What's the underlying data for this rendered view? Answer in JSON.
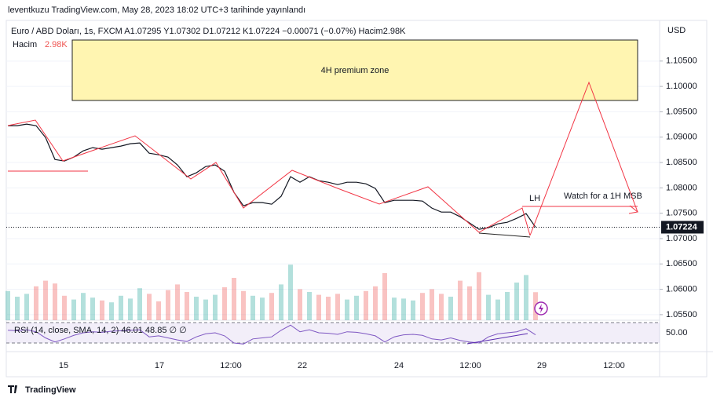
{
  "header": {
    "title": "leventkuzu TradingView.com, May 28, 2023 18:02 UTC+3 tarihinde yayınlandı"
  },
  "legend": {
    "symbol": "Euro / ABD Doları, 1s, FXCM  A1.07295  Y1.07302  D1.07212  K1.07224  −0.00071 (−0.07%)  Hacim2.98K",
    "volume_name": "Hacim",
    "volume_value": "2.98K"
  },
  "price_pane": {
    "currency": "USD",
    "ylim": [
      1.0539,
      1.1124
    ],
    "yticks": [
      {
        "value": 1.105,
        "label": "1.10500"
      },
      {
        "value": 1.1,
        "label": "1.10000"
      },
      {
        "value": 1.095,
        "label": "1.09500"
      },
      {
        "value": 1.09,
        "label": "1.09000"
      },
      {
        "value": 1.085,
        "label": "1.08500"
      },
      {
        "value": 1.08,
        "label": "1.08000"
      },
      {
        "value": 1.075,
        "label": "1.07500"
      },
      {
        "value": 1.07,
        "label": "1.07000"
      },
      {
        "value": 1.065,
        "label": "1.06500"
      },
      {
        "value": 1.06,
        "label": "1.06000"
      },
      {
        "value": 1.055,
        "label": "1.05500"
      }
    ],
    "close": [
      1.09226,
      1.09226,
      1.09257,
      1.09226,
      1.08994,
      1.0856,
      1.08529,
      1.08607,
      1.08731,
      1.08793,
      1.08762,
      1.08793,
      1.08824,
      1.0887,
      1.08885,
      1.08684,
      1.08653,
      1.08607,
      1.08452,
      1.0822,
      1.08297,
      1.08421,
      1.08452,
      1.08328,
      1.0791,
      1.07647,
      1.07709,
      1.07709,
      1.07678,
      1.07833,
      1.0822,
      1.08111,
      1.0822,
      1.08142,
      1.08111,
      1.08065,
      1.08111,
      1.08111,
      1.0808,
      1.07988,
      1.07709,
      1.07755,
      1.07755,
      1.07755,
      1.0774,
      1.07601,
      1.07523,
      1.07523,
      1.0743,
      1.07307,
      1.07183,
      1.07214,
      1.07291,
      1.07322,
      1.07399,
      1.07492,
      1.07224
    ],
    "current_price": {
      "value": 1.07224,
      "label": "1.07224"
    }
  },
  "volume": {
    "values": [
      3.1,
      2.5,
      2.8,
      3.6,
      4.2,
      3.9,
      2.6,
      2.2,
      2.9,
      2.4,
      2.1,
      1.9,
      2.6,
      2.3,
      3.4,
      2.8,
      2.0,
      3.2,
      3.8,
      3.0,
      2.5,
      2.2,
      2.7,
      3.5,
      4.5,
      3.1,
      2.6,
      2.4,
      2.9,
      3.8,
      5.9,
      3.3,
      3.0,
      2.7,
      2.5,
      2.8,
      2.2,
      2.6,
      3.1,
      3.6,
      5.0,
      2.4,
      2.3,
      2.1,
      2.9,
      3.3,
      2.8,
      2.5,
      4.2,
      3.6,
      5.1,
      2.7,
      2.2,
      3.0,
      4.0,
      4.8,
      2.98
    ]
  },
  "rsi": {
    "label": "RSI (14, close, SMA, 14, 2)  46.01  48.85  ∅  ∅",
    "band": [
      30,
      70
    ],
    "yticks": [
      {
        "value": 50,
        "label": "50.00"
      }
    ],
    "values": [
      55,
      54,
      56,
      52,
      40,
      32,
      38,
      45,
      50,
      52,
      51,
      53,
      54,
      55,
      56,
      42,
      44,
      40,
      36,
      33,
      42,
      48,
      50,
      44,
      30,
      28,
      38,
      40,
      42,
      55,
      65,
      52,
      56,
      50,
      49,
      47,
      52,
      51,
      48,
      44,
      32,
      42,
      46,
      47,
      45,
      38,
      36,
      40,
      35,
      32,
      30,
      42,
      48,
      50,
      52,
      58,
      46.01
    ]
  },
  "x_axis": {
    "labels": [
      "15",
      "17",
      "12:00",
      "22",
      "24",
      "12:00",
      "29",
      "12:00"
    ]
  },
  "annotations": {
    "zone": "4H premium zone",
    "lh": "LH",
    "msb": "Watch for a 1H MSB"
  },
  "footer": {
    "brand": "TradingView"
  }
}
